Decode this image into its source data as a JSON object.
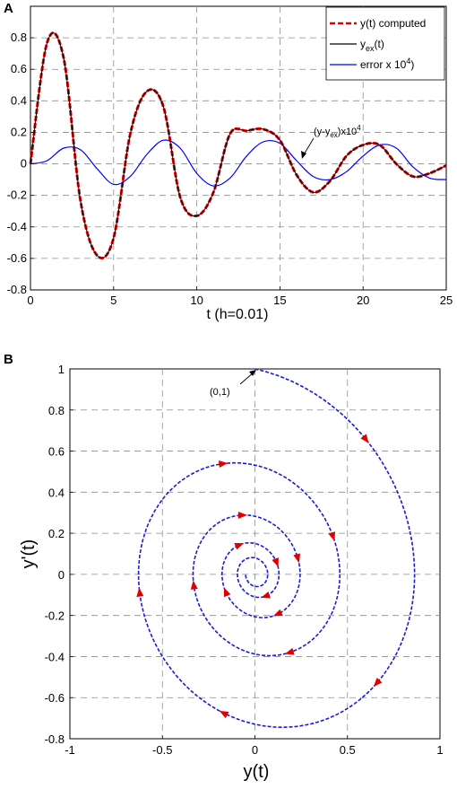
{
  "panels": {
    "a_label": "A",
    "b_label": "B"
  },
  "colors": {
    "computed": "#e00000",
    "exact": "#000000",
    "error": "#0000ff",
    "phase": "#1a1ad8",
    "arrow": "#e00000",
    "grid": "#8c8c8c"
  },
  "chart_data": [
    {
      "type": "line",
      "xlabel": "t  (h=0.01)",
      "ylabel": "",
      "xlim": [
        0,
        25
      ],
      "ylim": [
        -0.8,
        1
      ],
      "xticks": [
        0,
        5,
        10,
        15,
        20,
        25
      ],
      "yticks": [
        -0.8,
        -0.6,
        -0.4,
        -0.2,
        0,
        0.2,
        0.4,
        0.6,
        0.8
      ],
      "ytick_labels": [
        "-0.8",
        "-0.6",
        "-0.4",
        "-0.2",
        "0",
        "0.2",
        "0.4",
        "0.6",
        "0.8"
      ],
      "grid": true,
      "legend_position": "top-right",
      "legend": [
        "y(t) computed",
        "y_ex(t)",
        "error x 10^4)"
      ],
      "series": [
        {
          "name": "y(t) computed",
          "style": "dashed",
          "x": [
            0,
            1,
            2,
            3,
            4,
            5,
            6,
            7,
            8,
            9,
            10,
            11,
            12,
            13,
            14,
            15,
            16,
            17,
            18,
            19,
            20,
            21,
            22,
            23,
            24,
            25
          ],
          "y": [
            0,
            0.77,
            0.67,
            -0.23,
            -0.58,
            -0.47,
            0.19,
            0.46,
            0.36,
            -0.21,
            -0.33,
            -0.18,
            0.19,
            0.21,
            0.22,
            0.15,
            -0.07,
            -0.18,
            -0.11,
            0.05,
            0.12,
            0.12,
            0,
            -0.08,
            -0.06,
            -0.01
          ]
        },
        {
          "name": "y_ex(t)",
          "style": "solid",
          "x": [
            0,
            1,
            2,
            3,
            4,
            5,
            6,
            7,
            8,
            9,
            10,
            11,
            12,
            13,
            14,
            15,
            16,
            17,
            18,
            19,
            20,
            21,
            22,
            23,
            24,
            25
          ],
          "y": [
            0,
            0.77,
            0.67,
            -0.23,
            -0.58,
            -0.47,
            0.19,
            0.46,
            0.36,
            -0.21,
            -0.33,
            -0.18,
            0.19,
            0.21,
            0.22,
            0.15,
            -0.07,
            -0.18,
            -0.11,
            0.05,
            0.12,
            0.12,
            0,
            -0.08,
            -0.06,
            -0.01
          ]
        },
        {
          "name": "error x 10^4)",
          "style": "solid",
          "x": [
            0,
            1,
            2,
            3,
            4,
            5,
            6,
            7,
            8,
            9,
            10,
            11,
            12,
            13,
            14,
            15,
            16,
            17,
            18,
            19,
            20,
            21,
            22,
            23,
            24,
            25
          ],
          "y": [
            0,
            0.02,
            0.1,
            0.09,
            -0.03,
            -0.13,
            -0.08,
            0.06,
            0.15,
            0.1,
            -0.06,
            -0.14,
            -0.09,
            0.05,
            0.14,
            0.13,
            0.02,
            -0.08,
            -0.1,
            -0.05,
            0.05,
            0.12,
            0.1,
            -0.02,
            -0.09,
            -0.1
          ]
        }
      ],
      "annotations": [
        {
          "text": "(y-y_ex)x10^4",
          "x": 17.0,
          "y": 0.16
        }
      ]
    },
    {
      "type": "line",
      "xlabel": "y(t)",
      "ylabel": "y'(t)",
      "xlim": [
        -1,
        1
      ],
      "ylim": [
        -0.8,
        1
      ],
      "xticks": [
        -1,
        -0.5,
        0,
        0.5,
        1
      ],
      "xtick_labels": [
        "-1",
        "-0.5",
        "0",
        "0.5",
        "1"
      ],
      "yticks": [
        -0.8,
        -0.6,
        -0.4,
        -0.2,
        0,
        0.2,
        0.4,
        0.6,
        0.8,
        1
      ],
      "ytick_labels": [
        "-0.8",
        "-0.6",
        "-0.4",
        "-0.2",
        "0",
        "0.2",
        "0.4",
        "0.6",
        "0.8",
        "1"
      ],
      "grid": true,
      "series": [
        {
          "name": "",
          "style": "dashed",
          "description_shape": "inward spiral starting at (0,1)"
        }
      ],
      "annotations": [
        {
          "text": "(0,1)",
          "x": -0.1,
          "y": 0.88
        }
      ]
    }
  ]
}
